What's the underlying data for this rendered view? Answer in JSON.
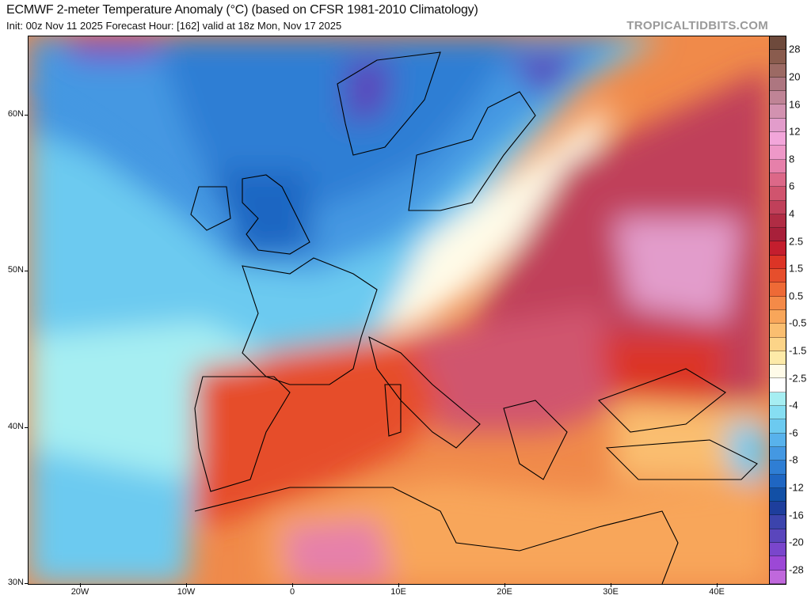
{
  "header": {
    "title": "ECMWF 2-meter Temperature Anomaly (°C) (based on CFSR 1981-2010 Climatology)",
    "subtitle": "Init: 00z Nov 11 2025   Forecast Hour: [162]   valid at 18z Mon, Nov 17 2025",
    "brand": "TROPICALTIDBITS.COM"
  },
  "axes": {
    "lat_labels": [
      "60N",
      "50N",
      "40N",
      "30N"
    ],
    "lon_labels": [
      "20W",
      "10W",
      "0",
      "10E",
      "20E",
      "30E",
      "40E"
    ]
  },
  "colorbar": {
    "labels": [
      "28",
      "20",
      "16",
      "12",
      "8",
      "6",
      "4",
      "2.5",
      "1.5",
      "0.5",
      "-0.5",
      "-1.5",
      "-2.5",
      "-4",
      "-6",
      "-8",
      "-12",
      "-16",
      "-20",
      "-28"
    ],
    "colors": [
      "#6e4a3c",
      "#8a5c4e",
      "#9c6a64",
      "#ad7680",
      "#bf8496",
      "#d292b0",
      "#e29ccb",
      "#f2a6da",
      "#ee98c8",
      "#e680aa",
      "#dc6888",
      "#d0546e",
      "#c0405a",
      "#b02c44",
      "#a8203a",
      "#c41e2e",
      "#dc3426",
      "#e64e2c",
      "#ee6a36",
      "#f48a48",
      "#f8a65a",
      "#fabe70",
      "#fcd488",
      "#fdeaa8",
      "#fffbe8",
      "#ffffff",
      "#a6eef2",
      "#86def2",
      "#6ccaf0",
      "#58b2ec",
      "#4498e2",
      "#2f7ed4",
      "#1f66c2",
      "#1250a6",
      "#1e3e9c",
      "#3c44ac",
      "#5a46bc",
      "#7a46cc",
      "#9c48d6",
      "#c068dc"
    ]
  }
}
